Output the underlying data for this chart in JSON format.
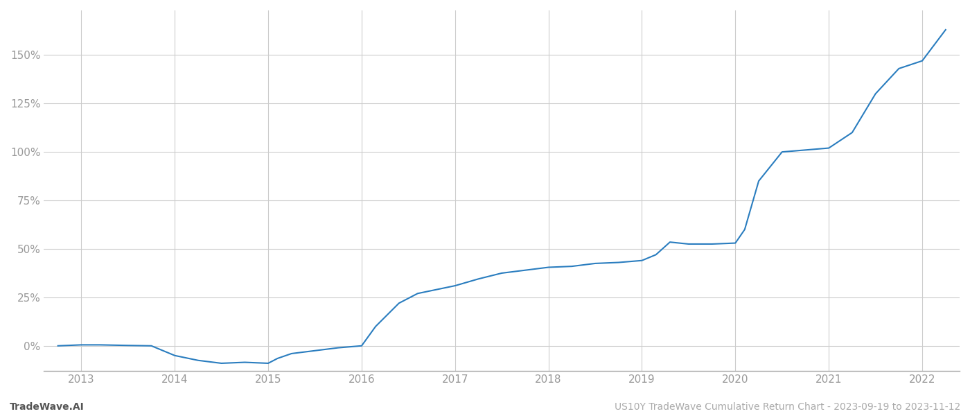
{
  "title": "US10Y TradeWave Cumulative Return Chart - 2023-09-19 to 2023-11-12",
  "watermark_left": "TradeWave.AI",
  "line_color": "#2a7dbf",
  "background_color": "#ffffff",
  "grid_color": "#cccccc",
  "x_values": [
    2012.75,
    2013.0,
    2013.2,
    2013.5,
    2013.75,
    2014.0,
    2014.25,
    2014.5,
    2014.75,
    2015.0,
    2015.1,
    2015.25,
    2015.5,
    2015.75,
    2016.0,
    2016.15,
    2016.4,
    2016.6,
    2016.9,
    2017.0,
    2017.25,
    2017.5,
    2017.75,
    2018.0,
    2018.25,
    2018.5,
    2018.75,
    2019.0,
    2019.15,
    2019.3,
    2019.5,
    2019.75,
    2020.0,
    2020.1,
    2020.25,
    2020.5,
    2020.75,
    2021.0,
    2021.25,
    2021.5,
    2021.75,
    2022.0,
    2022.25
  ],
  "y_values": [
    0.0,
    0.005,
    0.005,
    0.002,
    0.0,
    -0.05,
    -0.075,
    -0.09,
    -0.085,
    -0.09,
    -0.065,
    -0.04,
    -0.025,
    -0.01,
    0.0,
    0.1,
    0.22,
    0.27,
    0.3,
    0.31,
    0.345,
    0.375,
    0.39,
    0.405,
    0.41,
    0.425,
    0.43,
    0.44,
    0.47,
    0.535,
    0.525,
    0.525,
    0.53,
    0.6,
    0.85,
    1.0,
    1.01,
    1.02,
    1.1,
    1.3,
    1.43,
    1.47,
    1.63
  ],
  "xlim": [
    2012.6,
    2022.4
  ],
  "ylim": [
    -0.13,
    1.73
  ],
  "yticks": [
    0.0,
    0.25,
    0.5,
    0.75,
    1.0,
    1.25,
    1.5
  ],
  "xticks": [
    2013,
    2014,
    2015,
    2016,
    2017,
    2018,
    2019,
    2020,
    2021,
    2022
  ],
  "ytick_labels": [
    "0%",
    "25%",
    "50%",
    "75%",
    "100%",
    "125%",
    "150%"
  ],
  "line_width": 1.5
}
